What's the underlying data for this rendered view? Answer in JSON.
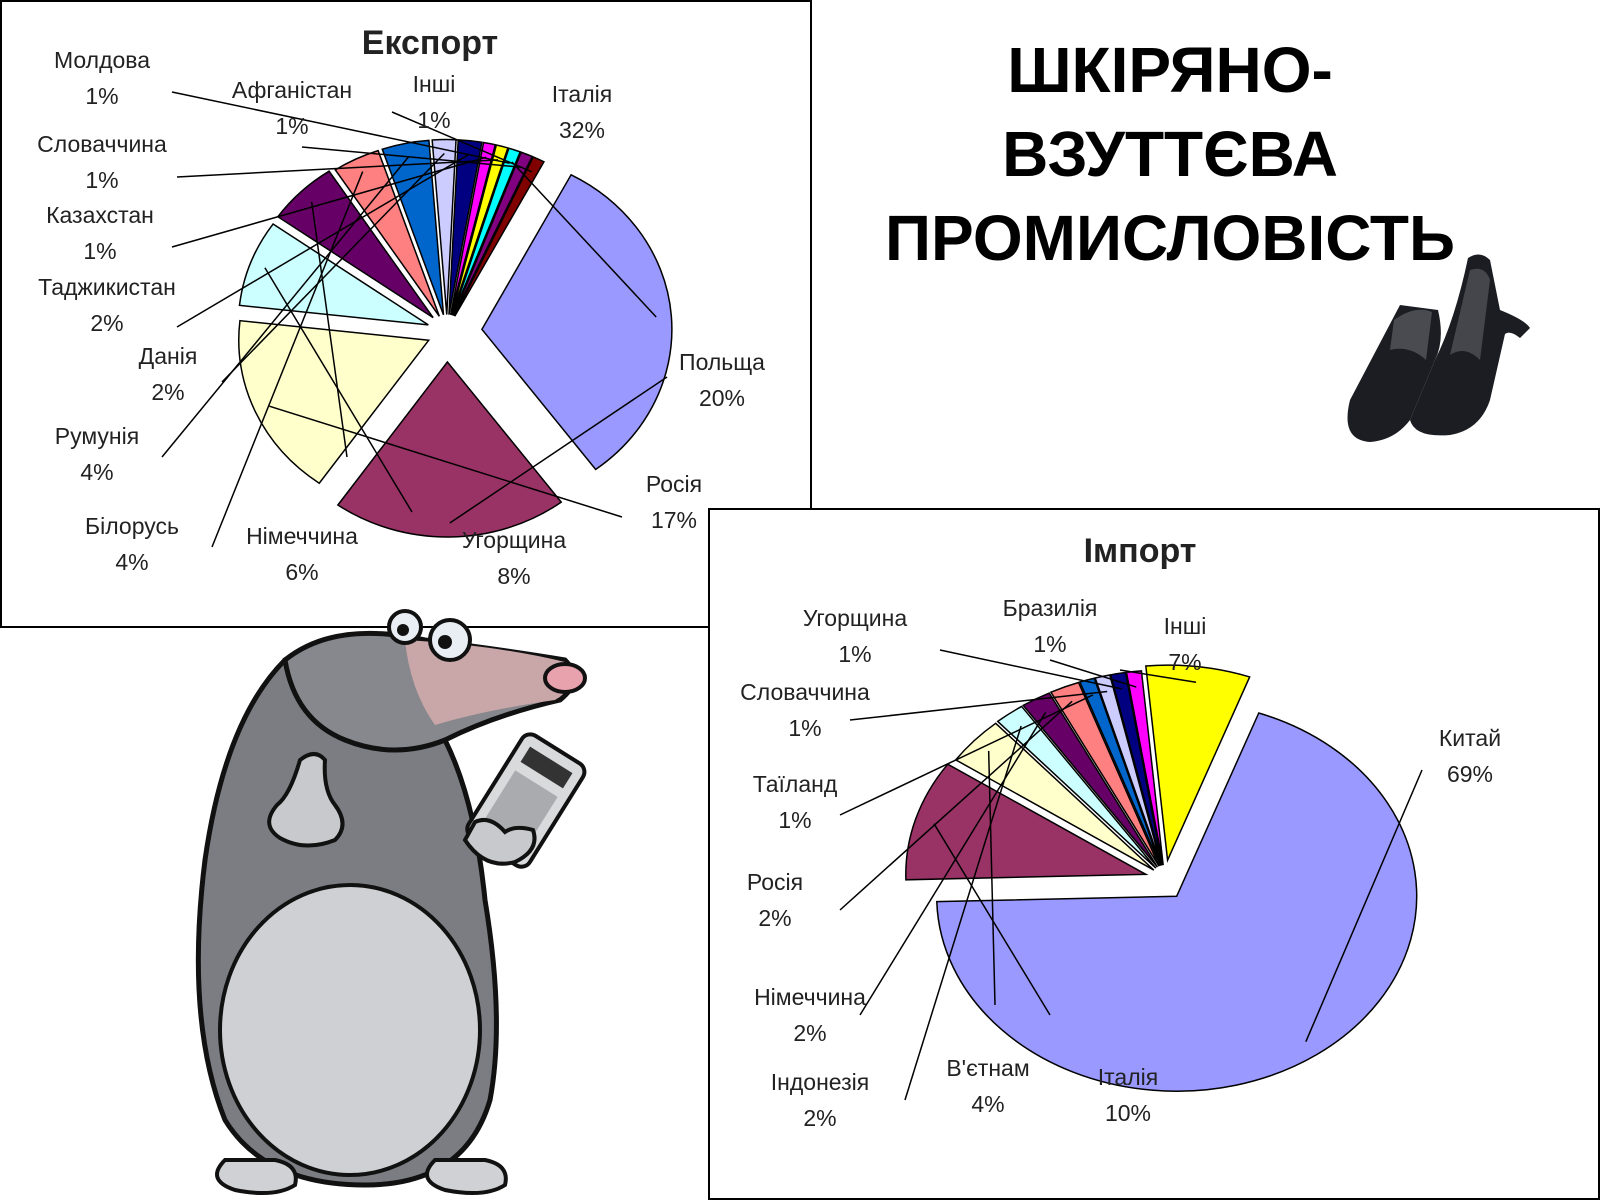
{
  "slide": {
    "title_lines": [
      "ШКІРЯНО-",
      "ВЗУТТЄВА",
      "ПРОМИСЛОВІСТЬ"
    ]
  },
  "chart_data": [
    {
      "type": "pie",
      "title": "Експорт",
      "categories": [
        "Італія",
        "Польща",
        "Росія",
        "Угорщина",
        "Німеччина",
        "Білорусь",
        "Румунія",
        "Данія",
        "Таджикистан",
        "Казахстан",
        "Словаччина",
        "Молдова",
        "Афганістан",
        "Інші"
      ],
      "values": [
        32,
        20,
        17,
        8,
        6,
        4,
        4,
        2,
        2,
        1,
        1,
        1,
        1,
        1
      ],
      "value_labels": [
        "32%",
        "20%",
        "17%",
        "8%",
        "6%",
        "4%",
        "4%",
        "2%",
        "2%",
        "1%",
        "1%",
        "1%",
        "1%",
        "1%"
      ],
      "colors": [
        "#9999FF",
        "#993366",
        "#FFFFCC",
        "#CCFFFF",
        "#660066",
        "#FF8080",
        "#0066CC",
        "#CCCCFF",
        "#000080",
        "#FF00FF",
        "#FFFF00",
        "#00FFFF",
        "#800080",
        "#800000"
      ],
      "exploded": true
    },
    {
      "type": "pie",
      "title": "Імпорт",
      "categories": [
        "Китай",
        "Італія",
        "В'єтнам",
        "Індонезія",
        "Німеччина",
        "Росія",
        "Таїланд",
        "Словаччина",
        "Угорщина",
        "Бразилія",
        "Інші"
      ],
      "values": [
        69,
        10,
        4,
        2,
        2,
        2,
        1,
        1,
        1,
        1,
        7
      ],
      "value_labels": [
        "69%",
        "10%",
        "4%",
        "2%",
        "2%",
        "2%",
        "1%",
        "1%",
        "1%",
        "1%",
        "7%"
      ],
      "colors": [
        "#9999FF",
        "#993366",
        "#FFFFCC",
        "#CCFFFF",
        "#660066",
        "#FF8080",
        "#0066CC",
        "#CCCCFF",
        "#000080",
        "#FF00FF",
        "#FFFF00"
      ],
      "exploded": true
    }
  ],
  "images": {
    "shoes": "black-high-heel-shoes",
    "mole": "cartoon-mole-with-calculator"
  }
}
